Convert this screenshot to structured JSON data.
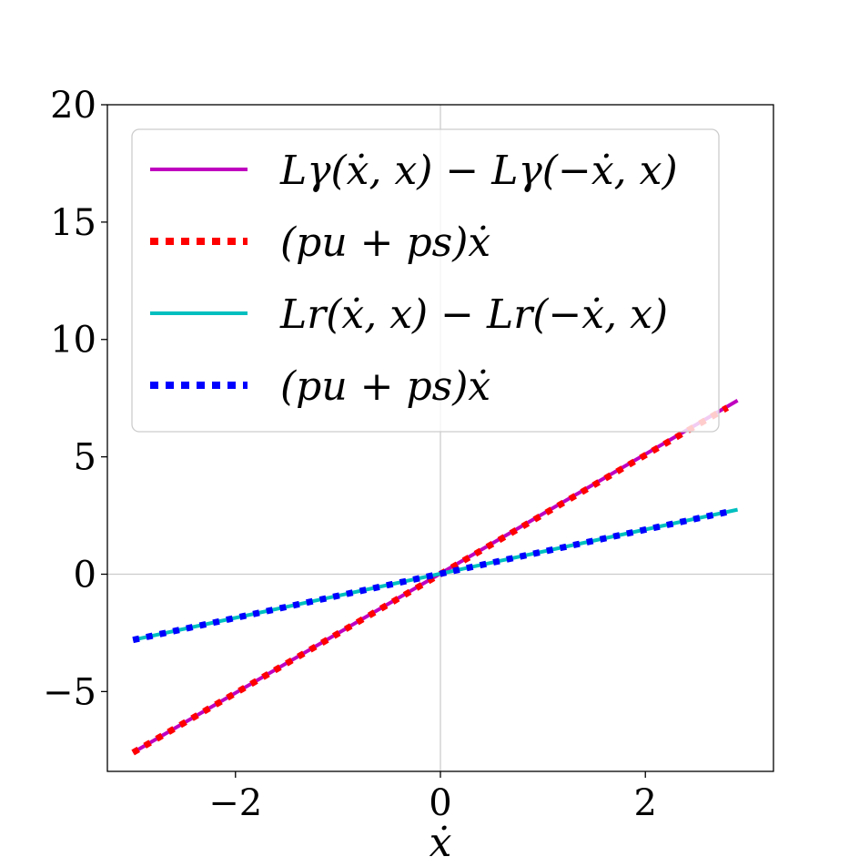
{
  "chart_data": {
    "type": "line",
    "title": "",
    "xlabel": "ẋ",
    "ylabel": "",
    "xlim": [
      -3.25,
      3.25
    ],
    "ylim": [
      -8.4,
      20
    ],
    "xticks": [
      -2,
      0,
      2
    ],
    "yticks": [
      -5,
      0,
      5,
      10,
      15,
      20
    ],
    "xtick_labels": [
      "−2",
      "0",
      "2"
    ],
    "ytick_labels": [
      "−5",
      "0",
      "5",
      "10",
      "15",
      "20"
    ],
    "grid": "zero-lines",
    "legend_position": "top-left",
    "series": [
      {
        "name": "Lγ(ẋ, x) − Lγ(−ẋ, x)",
        "color": "#bf00bf",
        "style": "solid",
        "x": [
          -3,
          2.9
        ],
        "y": [
          -7.6,
          7.4
        ]
      },
      {
        "name": "(pu + ps)ẋ",
        "color": "#ff0000",
        "style": "dotted",
        "x": [
          -3,
          2.8
        ],
        "y": [
          -7.6,
          7.1
        ]
      },
      {
        "name": "Lr(ẋ, x) − Lr(−ẋ, x)",
        "color": "#00bfbf",
        "style": "solid",
        "x": [
          -3,
          2.9
        ],
        "y": [
          -2.8,
          2.75
        ]
      },
      {
        "name": "(pu + ps)ẋ",
        "color": "#0000ff",
        "style": "dotted",
        "x": [
          -3,
          2.8
        ],
        "y": [
          -2.8,
          2.65
        ]
      }
    ]
  }
}
